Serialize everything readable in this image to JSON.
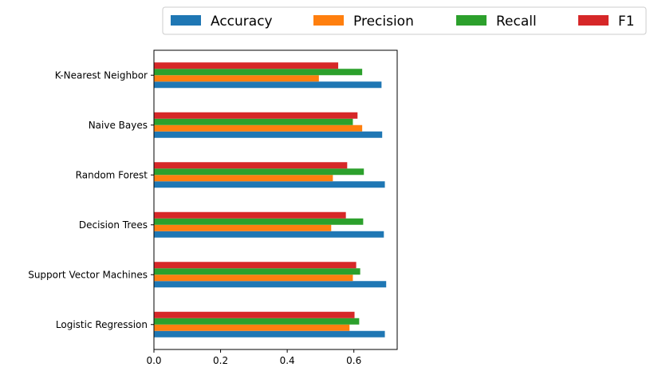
{
  "chart_data": {
    "type": "bar",
    "orientation": "horizontal",
    "categories": [
      "Logistic Regression",
      "Support Vector Machines",
      "Decision Trees",
      "Random Forest",
      "Naive Bayes",
      "K-Nearest Neighbor"
    ],
    "series": [
      {
        "name": "Accuracy",
        "color": "#1f77b4",
        "values": [
          0.693,
          0.697,
          0.69,
          0.693,
          0.685,
          0.683
        ]
      },
      {
        "name": "Precision",
        "color": "#ff7f0e",
        "values": [
          0.587,
          0.597,
          0.532,
          0.537,
          0.625,
          0.495
        ]
      },
      {
        "name": "Recall",
        "color": "#2ca02c",
        "values": [
          0.616,
          0.619,
          0.628,
          0.63,
          0.597,
          0.625
        ]
      },
      {
        "name": "F1",
        "color": "#d62728",
        "values": [
          0.602,
          0.607,
          0.576,
          0.58,
          0.611,
          0.553
        ]
      }
    ],
    "title": "",
    "xlabel": "",
    "ylabel": "",
    "xlim": [
      0,
      0.73
    ],
    "xticks": [
      0.0,
      0.2,
      0.4,
      0.6
    ],
    "xtick_labels": [
      "0.0",
      "0.2",
      "0.4",
      "0.6"
    ],
    "grid": false,
    "legend": {
      "placement": "top, outside axes, single row",
      "entries": [
        "Accuracy",
        "Precision",
        "Recall",
        "F1"
      ]
    }
  }
}
